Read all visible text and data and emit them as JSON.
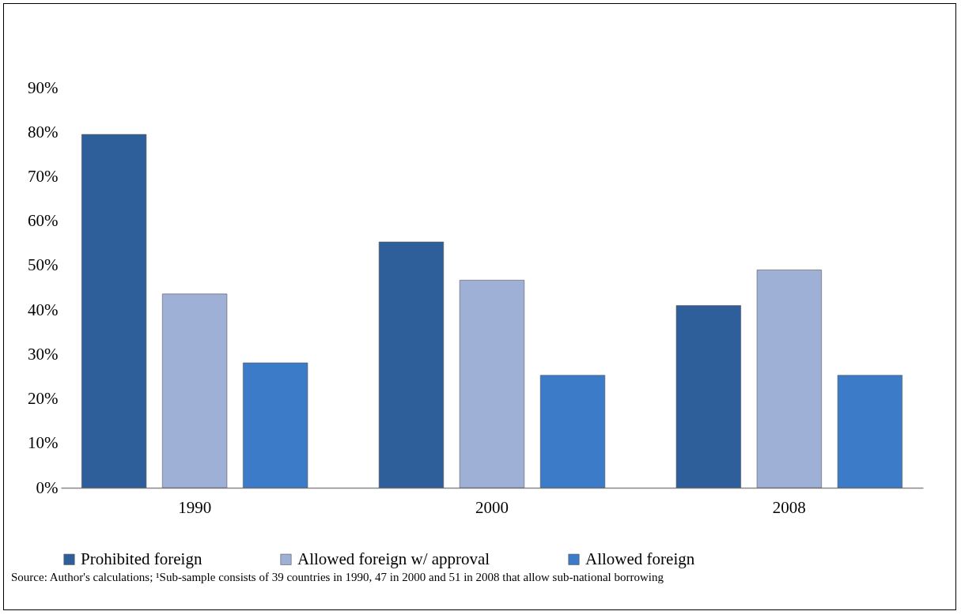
{
  "chart_data": {
    "type": "bar",
    "categories": [
      "1990",
      "2000",
      "2008"
    ],
    "series": [
      {
        "name": "Prohibited foreign",
        "color": "#2f5f9a",
        "values": [
          79.5,
          55.3,
          41.0
        ]
      },
      {
        "name": "Allowed foreign w/ approval",
        "color": "#9fb0d6",
        "values": [
          43.6,
          46.7,
          49.0
        ]
      },
      {
        "name": "Allowed foreign",
        "color": "#3b7bc8",
        "values": [
          28.1,
          25.3,
          25.3
        ]
      }
    ],
    "ylim": [
      0,
      90
    ],
    "yticks": [
      {
        "value": 0,
        "label": "0%"
      },
      {
        "value": 10,
        "label": "10%"
      },
      {
        "value": 20,
        "label": "20%"
      },
      {
        "value": 30,
        "label": "30%"
      },
      {
        "value": 40,
        "label": "40%"
      },
      {
        "value": 50,
        "label": "50%"
      },
      {
        "value": 60,
        "label": "60%"
      },
      {
        "value": 70,
        "label": "70%"
      },
      {
        "value": 80,
        "label": "80%"
      },
      {
        "value": 90,
        "label": "90%"
      }
    ],
    "grid": false,
    "legend": "bottom",
    "annotations": [
      "Source: Author's calculations; ¹Sub-sample consists of 39 countries in 1990, 47 in 2000 and 51 in 2008 that allow sub-national borrowing"
    ]
  }
}
